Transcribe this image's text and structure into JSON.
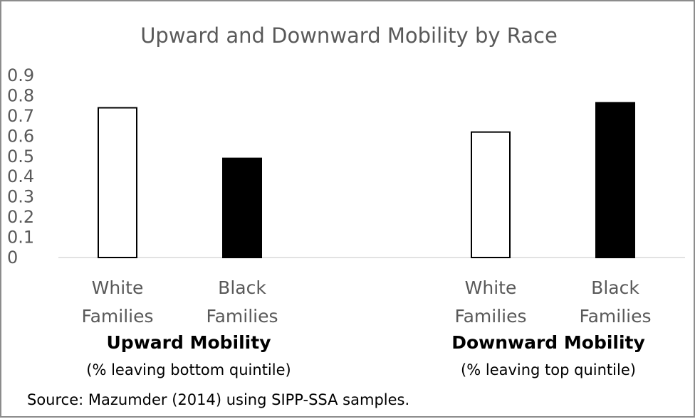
{
  "chart_data": {
    "type": "bar",
    "title": "Upward and Downward Mobility by Race",
    "ylim": [
      0,
      0.9
    ],
    "yticks": [
      "0",
      "0.1",
      "0.2",
      "0.3",
      "0.4",
      "0.5",
      "0.6",
      "0.7",
      "0.8",
      "0.9"
    ],
    "grid": false,
    "legend": "none",
    "groups": [
      {
        "label": "Upward Mobility",
        "sublabel": "(% leaving bottom quintile)",
        "bars": [
          {
            "category": [
              "White",
              "Families"
            ],
            "value": 0.74,
            "fill": "#ffffff"
          },
          {
            "category": [
              "Black",
              "Families"
            ],
            "value": 0.49,
            "fill": "#000000"
          }
        ]
      },
      {
        "label": "Downward Mobility",
        "sublabel": "(% leaving top quintile)",
        "bars": [
          {
            "category": [
              "White",
              "Families"
            ],
            "value": 0.62,
            "fill": "#ffffff"
          },
          {
            "category": [
              "Black",
              "Families"
            ],
            "value": 0.765,
            "fill": "#000000"
          }
        ]
      }
    ],
    "source": "Source:  Mazumder (2014) using SIPP-SSA samples."
  }
}
